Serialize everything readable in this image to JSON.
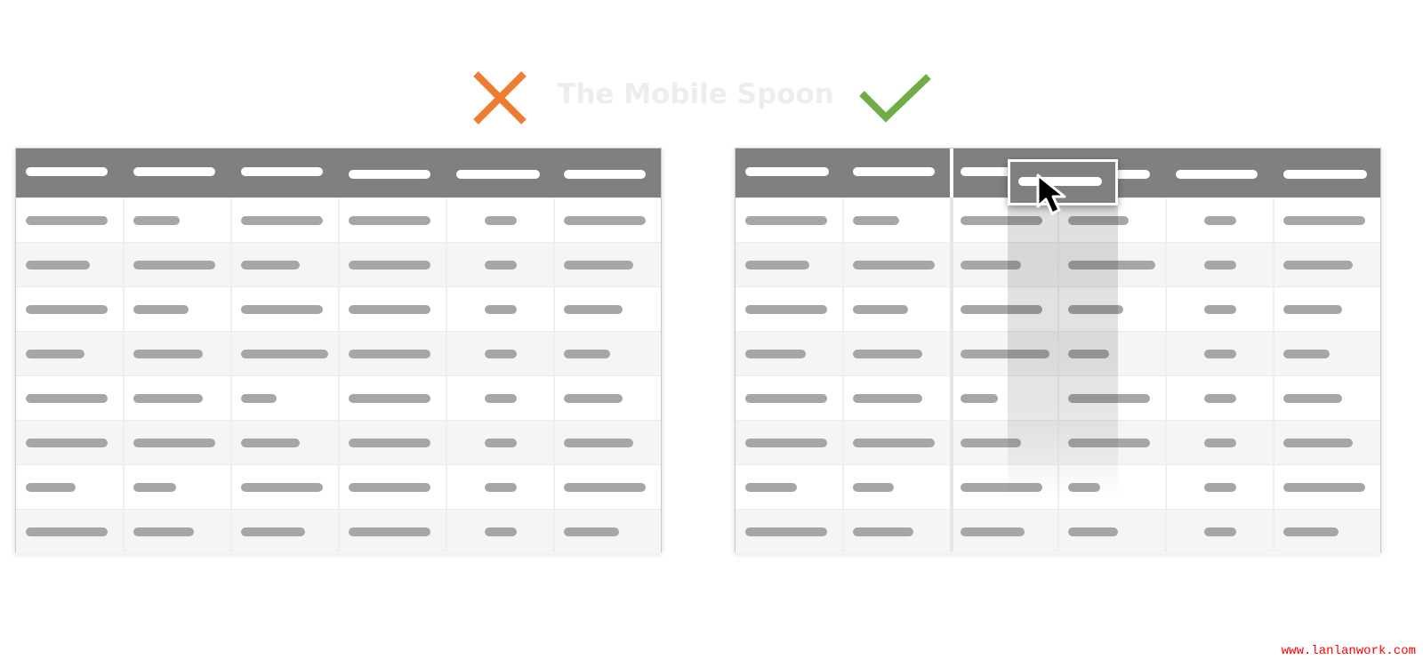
{
  "title": "The Mobile Spoon",
  "colors": {
    "wrong": "#ed7d31",
    "right": "#70ad47",
    "header": "#808080",
    "placeholder": "#a6a6a6"
  },
  "left_table": {
    "label": "wrong-example",
    "columns": 6,
    "rows": 8
  },
  "right_table": {
    "label": "right-example",
    "columns": 6,
    "rows": 8,
    "dragged_column": 3,
    "cursor": "arrow-cursor-icon"
  },
  "watermark": "www.lanlanwork.com"
}
